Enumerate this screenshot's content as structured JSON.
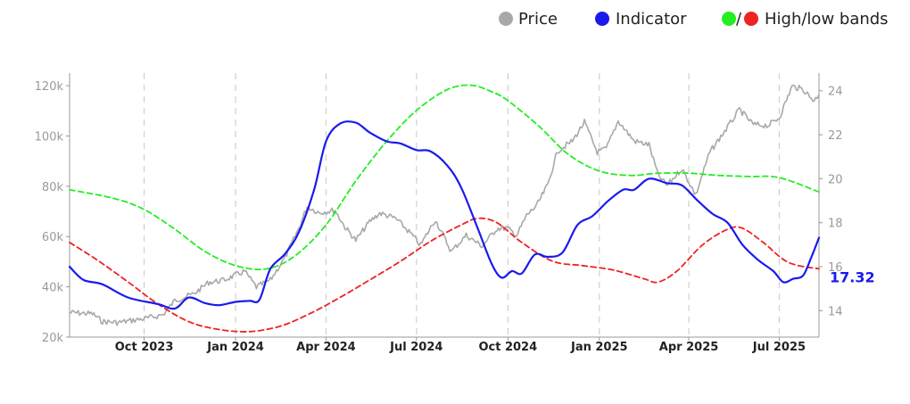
{
  "chart_data": {
    "type": "line",
    "title": "",
    "legend": {
      "placement": "top-right",
      "price_label": "Price",
      "indicator_label": "Indicator",
      "bands_separator": "/",
      "bands_label": "High/low bands"
    },
    "colors": {
      "price": "#a8a8a8",
      "indicator": "#1a1aee",
      "high_band": "#22ee22",
      "low_band": "#ee2222",
      "grid": "#d0d0d0",
      "axis": "#999999"
    },
    "x_axis": {
      "range": [
        "2023-07-18",
        "2025-08-10"
      ],
      "ticks": [
        {
          "date": "2023-10-01",
          "label": "Oct 2023"
        },
        {
          "date": "2024-01-01",
          "label": "Jan 2024"
        },
        {
          "date": "2024-04-01",
          "label": "Apr 2024"
        },
        {
          "date": "2024-07-01",
          "label": "Jul 2024"
        },
        {
          "date": "2024-10-01",
          "label": "Oct 2024"
        },
        {
          "date": "2025-01-01",
          "label": "Jan 2025"
        },
        {
          "date": "2025-04-01",
          "label": "Apr 2025"
        },
        {
          "date": "2025-07-01",
          "label": "Jul 2025"
        }
      ],
      "grid": "dashed-vertical"
    },
    "y_left": {
      "range": [
        20000,
        125000
      ],
      "ticks": [
        {
          "value": 20000,
          "label": "20k"
        },
        {
          "value": 40000,
          "label": "40k"
        },
        {
          "value": 60000,
          "label": "60k"
        },
        {
          "value": 80000,
          "label": "80k"
        },
        {
          "value": 100000,
          "label": "100k"
        },
        {
          "value": 120000,
          "label": "120k"
        }
      ]
    },
    "y_right": {
      "range": [
        12.8,
        24.8
      ],
      "ticks": [
        {
          "value": 14,
          "label": "14"
        },
        {
          "value": 16,
          "label": "16"
        },
        {
          "value": 18,
          "label": "18"
        },
        {
          "value": 20,
          "label": "20"
        },
        {
          "value": 22,
          "label": "22"
        },
        {
          "value": 24,
          "label": "24"
        }
      ]
    },
    "last_value_label": "17.32",
    "series": [
      {
        "name": "Price",
        "axis": "left",
        "points": [
          [
            "2023-07-18",
            29800
          ],
          [
            "2023-08-10",
            29300
          ],
          [
            "2023-08-20",
            26200
          ],
          [
            "2023-09-05",
            25800
          ],
          [
            "2023-09-20",
            26700
          ],
          [
            "2023-10-05",
            27600
          ],
          [
            "2023-10-20",
            28900
          ],
          [
            "2023-11-01",
            34600
          ],
          [
            "2023-11-20",
            37200
          ],
          [
            "2023-12-05",
            41800
          ],
          [
            "2023-12-20",
            42600
          ],
          [
            "2024-01-10",
            46200
          ],
          [
            "2024-01-22",
            39900
          ],
          [
            "2024-02-05",
            42700
          ],
          [
            "2024-02-20",
            51800
          ],
          [
            "2024-03-05",
            63500
          ],
          [
            "2024-03-13",
            72000
          ],
          [
            "2024-03-25",
            69500
          ],
          [
            "2024-04-10",
            70500
          ],
          [
            "2024-04-20",
            63800
          ],
          [
            "2024-05-01",
            58500
          ],
          [
            "2024-05-15",
            66000
          ],
          [
            "2024-05-25",
            69300
          ],
          [
            "2024-06-10",
            67200
          ],
          [
            "2024-06-25",
            61300
          ],
          [
            "2024-07-05",
            56500
          ],
          [
            "2024-07-20",
            66700
          ],
          [
            "2024-08-05",
            54000
          ],
          [
            "2024-08-20",
            60500
          ],
          [
            "2024-09-05",
            56200
          ],
          [
            "2024-09-20",
            63200
          ],
          [
            "2024-09-30",
            63400
          ],
          [
            "2024-10-10",
            60500
          ],
          [
            "2024-10-20",
            68500
          ],
          [
            "2024-10-30",
            72300
          ],
          [
            "2024-11-10",
            80500
          ],
          [
            "2024-11-20",
            94000
          ],
          [
            "2024-12-05",
            98000
          ],
          [
            "2024-12-17",
            105500
          ],
          [
            "2024-12-30",
            93500
          ],
          [
            "2025-01-08",
            95000
          ],
          [
            "2025-01-20",
            106000
          ],
          [
            "2025-02-05",
            98000
          ],
          [
            "2025-02-20",
            96500
          ],
          [
            "2025-03-01",
            84500
          ],
          [
            "2025-03-10",
            80300
          ],
          [
            "2025-03-25",
            87000
          ],
          [
            "2025-04-08",
            76500
          ],
          [
            "2025-04-22",
            93500
          ],
          [
            "2025-05-10",
            103500
          ],
          [
            "2025-05-22",
            110500
          ],
          [
            "2025-06-05",
            104500
          ],
          [
            "2025-06-20",
            104200
          ],
          [
            "2025-07-01",
            107300
          ],
          [
            "2025-07-14",
            119800
          ],
          [
            "2025-07-25",
            118500
          ],
          [
            "2025-08-05",
            114000
          ],
          [
            "2025-08-10",
            116500
          ]
        ]
      },
      {
        "name": "Indicator",
        "axis": "right",
        "points": [
          [
            "2023-07-18",
            16.0
          ],
          [
            "2023-08-01",
            15.4
          ],
          [
            "2023-08-20",
            15.2
          ],
          [
            "2023-09-15",
            14.6
          ],
          [
            "2023-10-15",
            14.3
          ],
          [
            "2023-11-01",
            14.1
          ],
          [
            "2023-11-15",
            14.6
          ],
          [
            "2023-12-01",
            14.35
          ],
          [
            "2023-12-15",
            14.25
          ],
          [
            "2024-01-01",
            14.4
          ],
          [
            "2024-01-15",
            14.45
          ],
          [
            "2024-01-25",
            14.5
          ],
          [
            "2024-02-05",
            15.9
          ],
          [
            "2024-02-20",
            16.6
          ],
          [
            "2024-03-05",
            17.6
          ],
          [
            "2024-03-20",
            19.5
          ],
          [
            "2024-04-01",
            21.7
          ],
          [
            "2024-04-15",
            22.5
          ],
          [
            "2024-05-01",
            22.55
          ],
          [
            "2024-05-15",
            22.1
          ],
          [
            "2024-06-01",
            21.7
          ],
          [
            "2024-06-15",
            21.6
          ],
          [
            "2024-07-01",
            21.3
          ],
          [
            "2024-07-15",
            21.25
          ],
          [
            "2024-08-01",
            20.6
          ],
          [
            "2024-08-15",
            19.6
          ],
          [
            "2024-09-01",
            17.7
          ],
          [
            "2024-09-15",
            16.1
          ],
          [
            "2024-09-25",
            15.5
          ],
          [
            "2024-10-05",
            15.8
          ],
          [
            "2024-10-15",
            15.7
          ],
          [
            "2024-10-28",
            16.55
          ],
          [
            "2024-11-10",
            16.45
          ],
          [
            "2024-11-25",
            16.65
          ],
          [
            "2024-12-10",
            17.9
          ],
          [
            "2024-12-25",
            18.3
          ],
          [
            "2025-01-10",
            19.0
          ],
          [
            "2025-01-25",
            19.5
          ],
          [
            "2025-02-05",
            19.5
          ],
          [
            "2025-02-20",
            20.0
          ],
          [
            "2025-03-10",
            19.8
          ],
          [
            "2025-03-25",
            19.7
          ],
          [
            "2025-04-10",
            19.0
          ],
          [
            "2025-04-25",
            18.4
          ],
          [
            "2025-05-10",
            18.0
          ],
          [
            "2025-05-25",
            17.0
          ],
          [
            "2025-06-10",
            16.3
          ],
          [
            "2025-06-25",
            15.8
          ],
          [
            "2025-07-05",
            15.3
          ],
          [
            "2025-07-15",
            15.45
          ],
          [
            "2025-07-25",
            15.6
          ],
          [
            "2025-08-02",
            16.4
          ],
          [
            "2025-08-10",
            17.32
          ]
        ]
      },
      {
        "name": "High band",
        "axis": "right",
        "points": [
          [
            "2023-07-18",
            19.5
          ],
          [
            "2023-09-01",
            19.1
          ],
          [
            "2023-10-01",
            18.6
          ],
          [
            "2023-11-01",
            17.7
          ],
          [
            "2023-12-01",
            16.7
          ],
          [
            "2024-01-01",
            16.05
          ],
          [
            "2024-02-01",
            15.9
          ],
          [
            "2024-03-01",
            16.5
          ],
          [
            "2024-04-01",
            17.9
          ],
          [
            "2024-05-01",
            19.9
          ],
          [
            "2024-06-01",
            21.7
          ],
          [
            "2024-07-01",
            23.1
          ],
          [
            "2024-08-01",
            24.05
          ],
          [
            "2024-08-25",
            24.25
          ],
          [
            "2024-09-15",
            23.95
          ],
          [
            "2024-10-01",
            23.55
          ],
          [
            "2024-11-01",
            22.4
          ],
          [
            "2024-12-01",
            21.1
          ],
          [
            "2025-01-01",
            20.35
          ],
          [
            "2025-02-01",
            20.15
          ],
          [
            "2025-03-01",
            20.25
          ],
          [
            "2025-04-01",
            20.25
          ],
          [
            "2025-05-01",
            20.15
          ],
          [
            "2025-06-01",
            20.1
          ],
          [
            "2025-07-01",
            20.05
          ],
          [
            "2025-08-10",
            19.4
          ]
        ]
      },
      {
        "name": "Low band",
        "axis": "right",
        "points": [
          [
            "2023-07-18",
            17.1
          ],
          [
            "2023-08-15",
            16.3
          ],
          [
            "2023-09-15",
            15.3
          ],
          [
            "2023-10-15",
            14.3
          ],
          [
            "2023-11-15",
            13.5
          ],
          [
            "2023-12-15",
            13.15
          ],
          [
            "2024-01-15",
            13.05
          ],
          [
            "2024-02-15",
            13.3
          ],
          [
            "2024-03-15",
            13.85
          ],
          [
            "2024-04-15",
            14.6
          ],
          [
            "2024-05-15",
            15.4
          ],
          [
            "2024-06-15",
            16.25
          ],
          [
            "2024-07-15",
            17.15
          ],
          [
            "2024-08-15",
            17.9
          ],
          [
            "2024-09-01",
            18.2
          ],
          [
            "2024-09-20",
            18.0
          ],
          [
            "2024-10-15",
            17.1
          ],
          [
            "2024-11-15",
            16.25
          ],
          [
            "2024-12-15",
            16.05
          ],
          [
            "2025-01-15",
            15.85
          ],
          [
            "2025-02-15",
            15.45
          ],
          [
            "2025-03-01",
            15.3
          ],
          [
            "2025-03-20",
            15.8
          ],
          [
            "2025-04-15",
            17.0
          ],
          [
            "2025-05-10",
            17.7
          ],
          [
            "2025-05-25",
            17.75
          ],
          [
            "2025-06-15",
            17.1
          ],
          [
            "2025-07-10",
            16.2
          ],
          [
            "2025-08-10",
            15.9
          ]
        ]
      }
    ]
  }
}
